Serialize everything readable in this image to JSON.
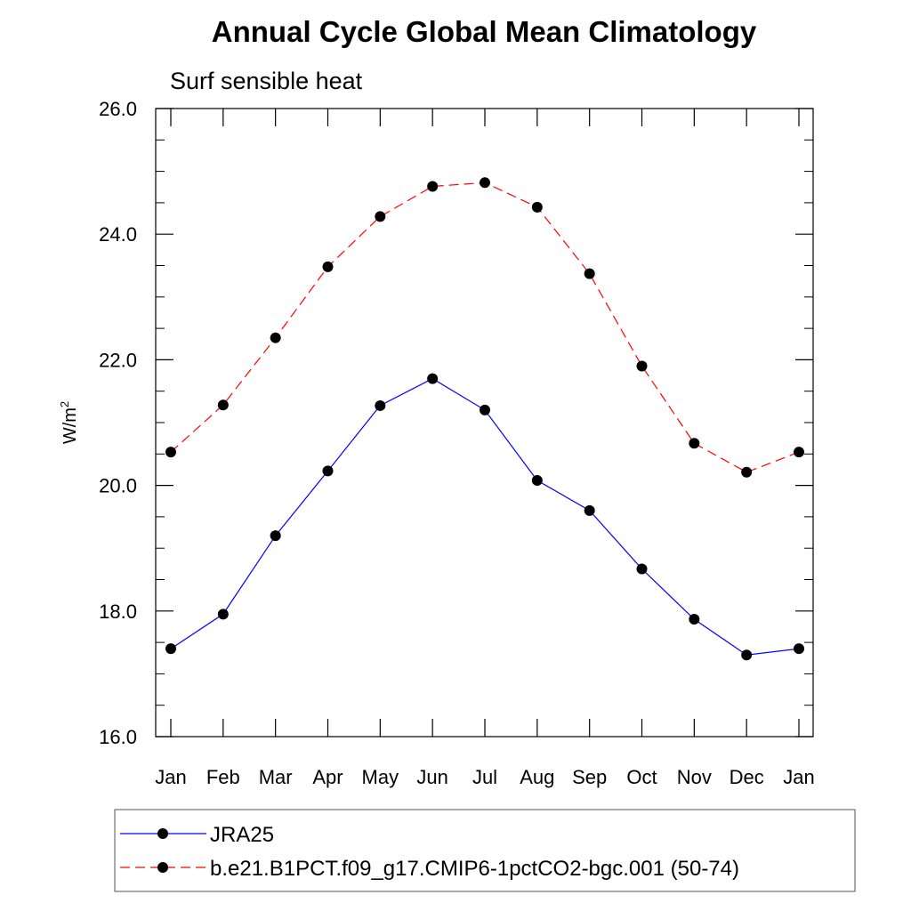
{
  "chart_data": {
    "type": "line",
    "title": "Annual Cycle Global Mean Climatology",
    "subtitle": "Surf sensible heat",
    "ylabel": "W/m",
    "ylabel_superscript": "2",
    "xlabel": "",
    "ylim": [
      16.0,
      26.0
    ],
    "yticks": [
      "16.0",
      "18.0",
      "20.0",
      "22.0",
      "24.0",
      "26.0"
    ],
    "y_minor_step": 0.5,
    "categories": [
      "Jan",
      "Feb",
      "Mar",
      "Apr",
      "May",
      "Jun",
      "Jul",
      "Aug",
      "Sep",
      "Oct",
      "Nov",
      "Dec",
      "Jan"
    ],
    "grid": false,
    "legend_position": "bottom",
    "series": [
      {
        "name": "JRA25",
        "color": "#0000ff",
        "dash": "solid",
        "marker": "filled-circle",
        "values": [
          17.4,
          17.95,
          19.2,
          20.23,
          21.27,
          21.7,
          21.2,
          20.08,
          19.6,
          18.67,
          17.87,
          17.3,
          17.4
        ]
      },
      {
        "name": "b.e21.B1PCT.f09_g17.CMIP6-1pctCO2-bgc.001 (50-74)",
        "color": "#ff0000",
        "dash": "dashed",
        "marker": "filled-circle",
        "values": [
          20.53,
          21.28,
          22.35,
          23.48,
          24.28,
          24.76,
          24.82,
          24.43,
          23.37,
          21.9,
          20.67,
          20.21,
          20.53
        ]
      }
    ]
  }
}
